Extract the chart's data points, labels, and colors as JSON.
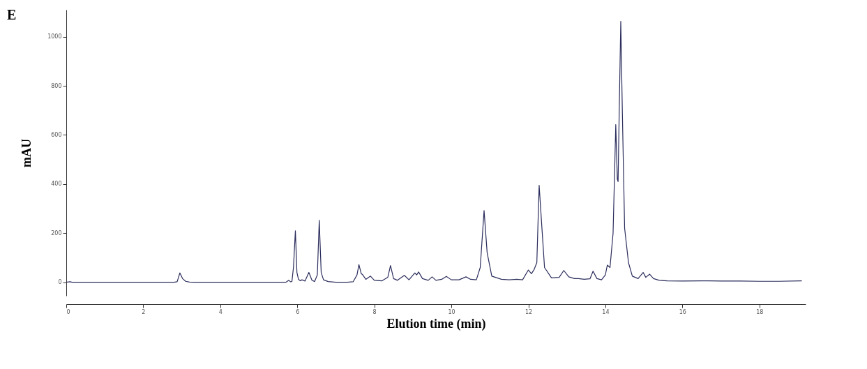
{
  "chart_data": {
    "type": "line",
    "xlabel": "Elution time (min)",
    "ylabel": "mAU",
    "annotations": [
      "E"
    ],
    "xlim": [
      0,
      19.2
    ],
    "ylim": [
      -55,
      1110
    ],
    "xticks": [
      0,
      2,
      4,
      6,
      8,
      10,
      12,
      14,
      16,
      18
    ],
    "yticks": [
      0,
      200,
      400,
      600,
      800,
      1000
    ],
    "grid": false,
    "line_style": "solid",
    "marker": "none",
    "series": [
      {
        "color": "#2b2d5c",
        "x": [
          0,
          0.1,
          0.15,
          0.2,
          1.0,
          2.0,
          2.8,
          2.88,
          2.95,
          3.02,
          3.1,
          3.2,
          3.3,
          4.0,
          5.0,
          5.7,
          5.78,
          5.82,
          5.86,
          5.9,
          5.95,
          5.99,
          6.03,
          6.08,
          6.12,
          6.2,
          6.3,
          6.38,
          6.45,
          6.52,
          6.57,
          6.62,
          6.68,
          6.8,
          7.0,
          7.3,
          7.45,
          7.55,
          7.6,
          7.66,
          7.7,
          7.78,
          7.9,
          8.0,
          8.2,
          8.35,
          8.42,
          8.5,
          8.6,
          8.78,
          8.9,
          9.05,
          9.1,
          9.15,
          9.25,
          9.4,
          9.5,
          9.6,
          9.75,
          9.87,
          10.0,
          10.2,
          10.38,
          10.5,
          10.65,
          10.75,
          10.85,
          10.93,
          11.05,
          11.3,
          11.5,
          11.7,
          11.85,
          12.0,
          12.08,
          12.15,
          12.22,
          12.28,
          12.34,
          12.42,
          12.6,
          12.8,
          12.92,
          13.05,
          13.2,
          13.3,
          13.45,
          13.6,
          13.68,
          13.78,
          13.9,
          14.0,
          14.05,
          14.12,
          14.2,
          14.27,
          14.31,
          14.33,
          14.36,
          14.4,
          14.44,
          14.5,
          14.6,
          14.7,
          14.85,
          14.98,
          15.05,
          15.15,
          15.25,
          15.4,
          15.6,
          16.0,
          16.5,
          17.0,
          17.5,
          18.0,
          18.5,
          19.1
        ],
        "values": [
          0,
          2,
          0,
          0,
          0,
          0,
          0,
          2,
          38,
          15,
          4,
          1,
          0,
          0,
          0,
          0,
          8,
          2,
          3,
          60,
          210,
          40,
          12,
          6,
          10,
          5,
          40,
          8,
          3,
          30,
          252,
          40,
          10,
          3,
          0,
          0,
          2,
          30,
          72,
          35,
          30,
          12,
          25,
          8,
          6,
          20,
          68,
          15,
          8,
          28,
          10,
          38,
          30,
          42,
          15,
          8,
          22,
          8,
          12,
          24,
          10,
          10,
          22,
          12,
          10,
          60,
          292,
          120,
          25,
          12,
          10,
          12,
          10,
          50,
          35,
          52,
          80,
          395,
          250,
          60,
          18,
          20,
          48,
          22,
          15,
          15,
          12,
          14,
          45,
          15,
          10,
          30,
          70,
          60,
          200,
          642,
          420,
          410,
          700,
          1063,
          700,
          220,
          80,
          25,
          15,
          40,
          20,
          33,
          15,
          8,
          6,
          5,
          6,
          5,
          5,
          4,
          4,
          6
        ]
      }
    ]
  }
}
